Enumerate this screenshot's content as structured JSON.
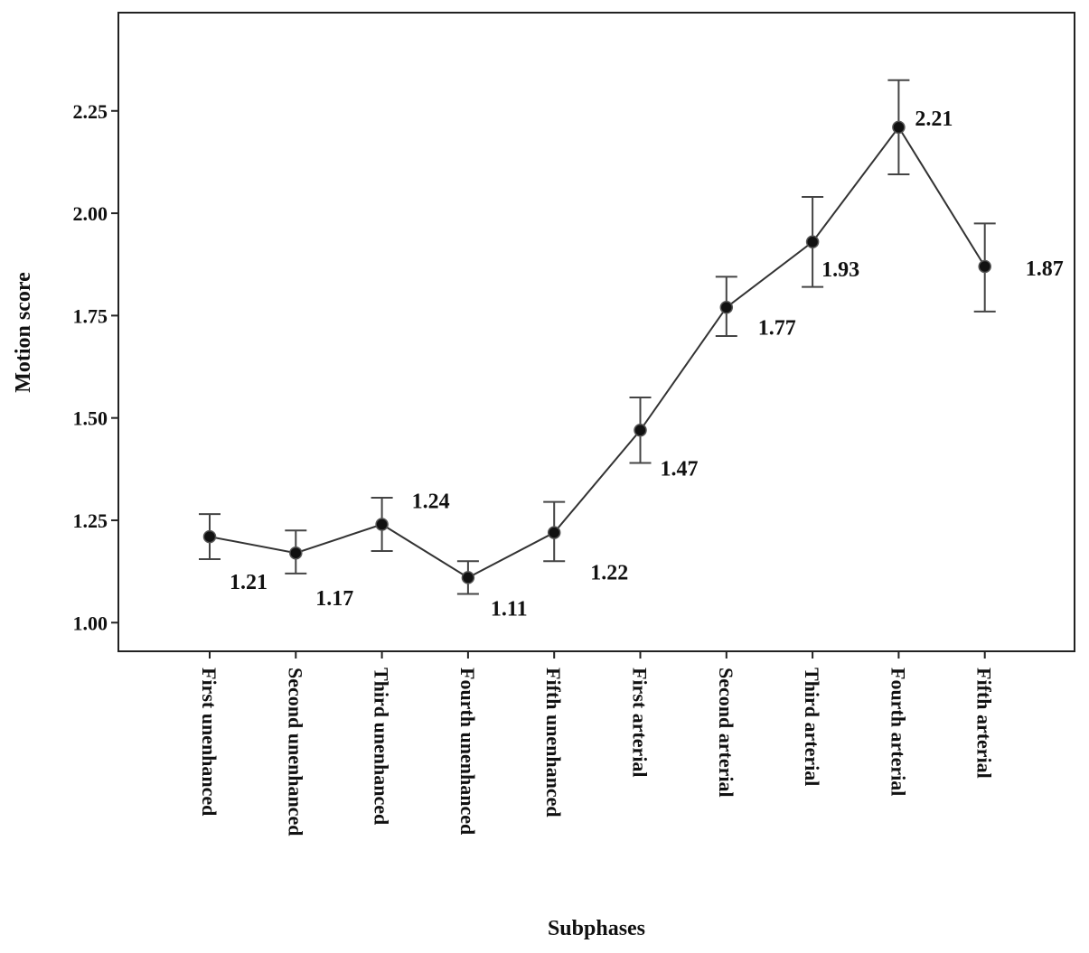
{
  "chart_data": {
    "type": "line",
    "xlabel": "Subphases",
    "ylabel": "Motion score",
    "ylim": [
      0.93,
      2.49
    ],
    "yticks": [
      1.0,
      1.25,
      1.5,
      1.75,
      2.0,
      2.25
    ],
    "ytick_labels": [
      "1.00",
      "1.25",
      "1.50",
      "1.75",
      "2.00",
      "2.25"
    ],
    "grid": false,
    "legend": "none",
    "colors": {
      "line": "#333333",
      "marker": "#111111",
      "errorbar": "#444444"
    },
    "categories": [
      "First unenhanced",
      "Second unenhanced",
      "Third unenhanced",
      "Fourth unenhanced",
      "Fifth unenhanced",
      "First arterial",
      "Second arterial",
      "Third arterial",
      "Fourth arterial",
      "Fifth arterial"
    ],
    "series": [
      {
        "values": [
          1.21,
          1.17,
          1.24,
          1.11,
          1.22,
          1.47,
          1.77,
          1.93,
          2.21,
          1.87
        ],
        "error_low": [
          1.155,
          1.12,
          1.175,
          1.07,
          1.15,
          1.39,
          1.7,
          1.82,
          2.095,
          1.76
        ],
        "error_high": [
          1.265,
          1.225,
          1.305,
          1.15,
          1.295,
          1.55,
          1.845,
          2.04,
          2.325,
          1.975
        ],
        "data_labels": [
          "1.21",
          "1.17",
          "1.24",
          "1.11",
          "1.22",
          "1.47",
          "1.77",
          "1.93",
          "2.21",
          "1.87"
        ]
      }
    ]
  }
}
